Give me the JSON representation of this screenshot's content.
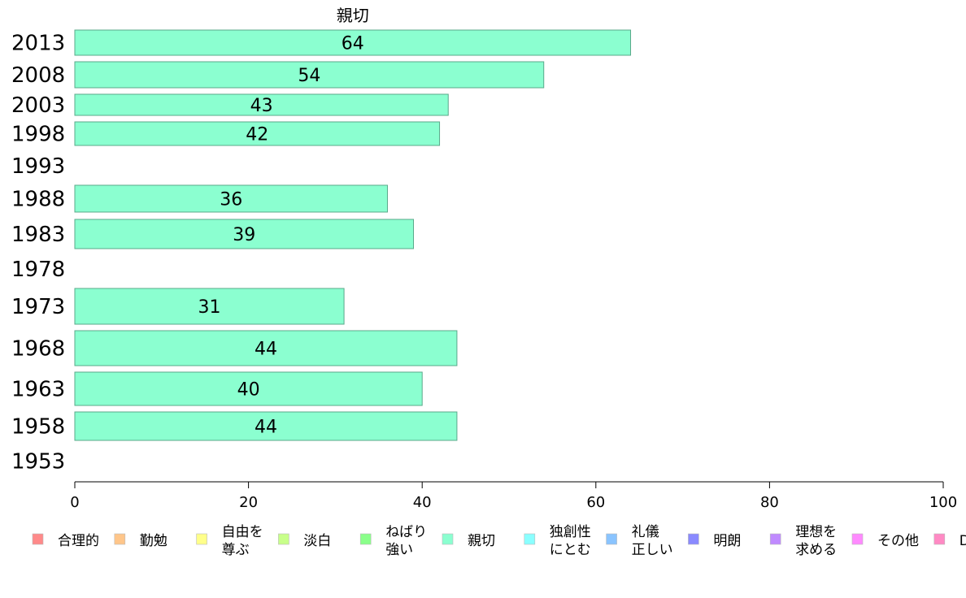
{
  "chart_data": {
    "type": "bar",
    "orientation": "horizontal",
    "title": "親切",
    "xlim": [
      0,
      100
    ],
    "xticks": [
      0,
      20,
      40,
      60,
      80,
      100
    ],
    "categories": [
      "2013",
      "2008",
      "2003",
      "1998",
      "1993",
      "1988",
      "1983",
      "1978",
      "1973",
      "1968",
      "1963",
      "1958",
      "1953"
    ],
    "series": [
      {
        "name": "親切",
        "color": "#8bffd0",
        "values": [
          64,
          54,
          43,
          42,
          null,
          36,
          39,
          null,
          31,
          44,
          40,
          44,
          null
        ],
        "labels": [
          "64",
          "54",
          "43",
          "42",
          "",
          "36",
          "39",
          "",
          "31",
          "44",
          "40",
          "44",
          ""
        ]
      }
    ],
    "legend": {
      "placement": "bottom",
      "items": [
        {
          "label": "合理的",
          "color": "#ff8a8a"
        },
        {
          "label": "勤勉",
          "color": "#ffc68a"
        },
        {
          "label": "自由を\n尊ぶ",
          "color": "#ffff8a"
        },
        {
          "label": "淡白",
          "color": "#c8ff8a"
        },
        {
          "label": "ねばり\n強い",
          "color": "#8aff8a"
        },
        {
          "label": "親切",
          "color": "#8bffd0"
        },
        {
          "label": "独創性\nにとむ",
          "color": "#8affff"
        },
        {
          "label": "礼儀\n正しい",
          "color": "#8ac4ff"
        },
        {
          "label": "明朗",
          "color": "#8a8aff"
        },
        {
          "label": "理想を\n求める",
          "color": "#c08aff"
        },
        {
          "label": "その他",
          "color": "#ff8aff"
        },
        {
          "label": "D",
          "color": "#ff8ac4"
        }
      ]
    },
    "grid": false
  }
}
